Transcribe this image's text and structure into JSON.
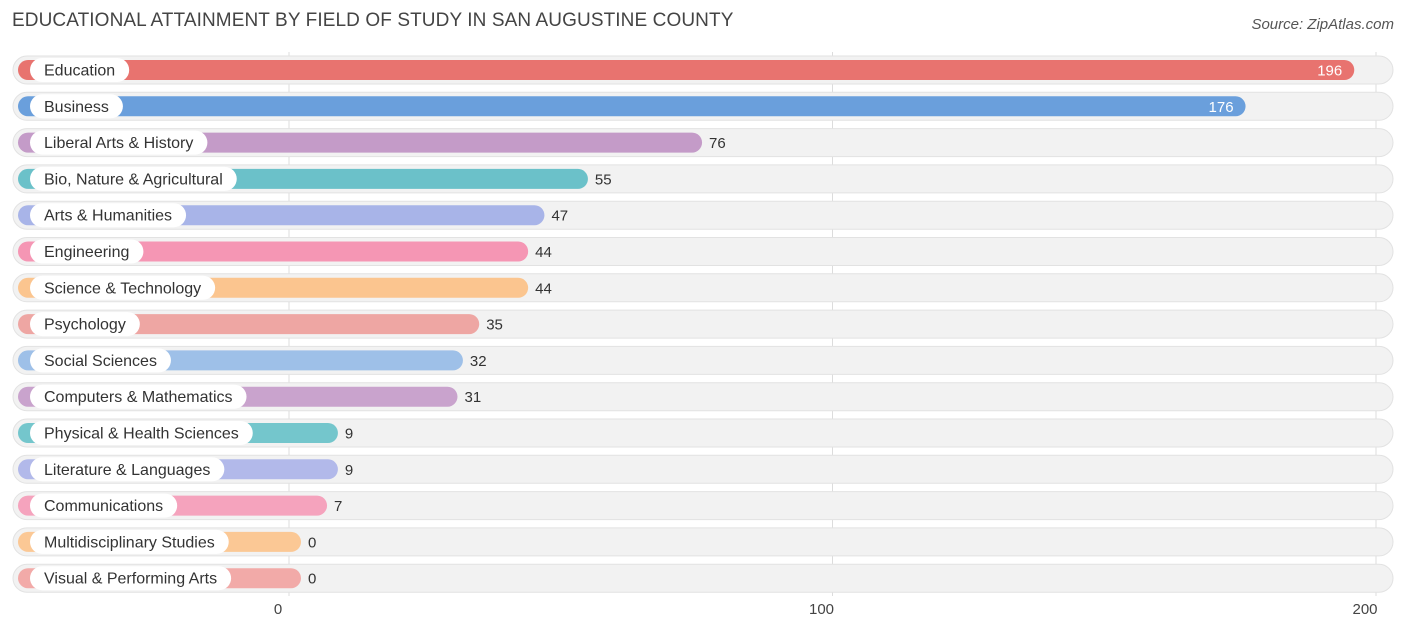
{
  "header": {
    "title": "EDUCATIONAL ATTAINMENT BY FIELD OF STUDY IN SAN AUGUSTINE COUNTY",
    "source": "Source: ZipAtlas.com"
  },
  "chart_data": {
    "type": "bar",
    "orientation": "horizontal",
    "title": "EDUCATIONAL ATTAINMENT BY FIELD OF STUDY IN SAN AUGUSTINE COUNTY",
    "xlim": [
      0,
      200
    ],
    "xticks": [
      "0",
      "100",
      "200"
    ],
    "grid": true,
    "categories": [
      "Education",
      "Business",
      "Liberal Arts & History",
      "Bio, Nature & Agricultural",
      "Arts & Humanities",
      "Engineering",
      "Science & Technology",
      "Psychology",
      "Social Sciences",
      "Computers & Mathematics",
      "Physical & Health Sciences",
      "Literature & Languages",
      "Communications",
      "Multidisciplinary Studies",
      "Visual & Performing Arts"
    ],
    "values": [
      196,
      176,
      76,
      55,
      47,
      44,
      44,
      35,
      32,
      31,
      9,
      9,
      7,
      0,
      0
    ],
    "colors": [
      "#e8736f",
      "#6a9fdc",
      "#c49bc8",
      "#6bc1c9",
      "#a8b4e8",
      "#f596b4",
      "#fbc58f",
      "#eea6a3",
      "#9ec0e8",
      "#c9a3cd",
      "#74c6cc",
      "#b2b9ea",
      "#f5a3bd",
      "#fbc895",
      "#f2aaa8"
    ]
  }
}
